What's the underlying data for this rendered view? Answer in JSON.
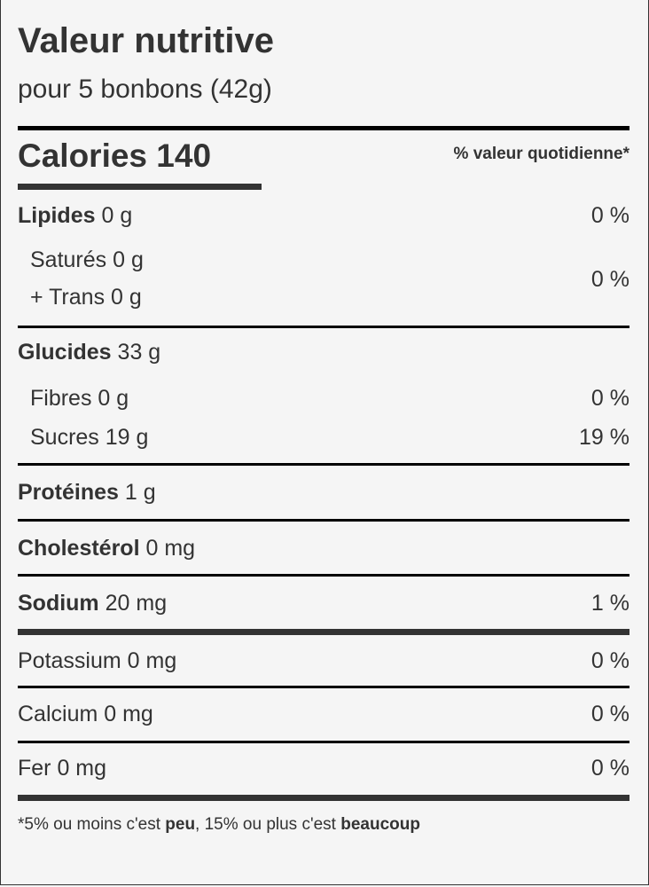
{
  "header": {
    "title": "Valeur nutritive",
    "serving": "pour 5 bonbons (42g)"
  },
  "calories": {
    "label": "Calories",
    "value": "140",
    "dv_header": "% valeur quotidienne*"
  },
  "rows": [
    {
      "name": "Lipides",
      "amount": "0 g",
      "dv": "0 %"
    },
    {
      "name": "Saturés",
      "amount": "0 g"
    },
    {
      "name": "+ Trans",
      "amount": "0 g",
      "dv": "0 %"
    },
    {
      "name": "Glucides",
      "amount": "33 g"
    },
    {
      "name": "Fibres",
      "amount": "0 g",
      "dv": "0 %"
    },
    {
      "name": "Sucres",
      "amount": "19 g",
      "dv": "19 %"
    },
    {
      "name": "Protéines",
      "amount": "1 g"
    },
    {
      "name": "Cholestérol",
      "amount": "0 mg"
    },
    {
      "name": "Sodium",
      "amount": "20 mg",
      "dv": "1 %"
    },
    {
      "name": "Potassium",
      "amount": "0 mg",
      "dv": "0 %"
    },
    {
      "name": "Calcium",
      "amount": "0 mg",
      "dv": "0 %"
    },
    {
      "name": "Fer",
      "amount": "0 mg",
      "dv": "0 %"
    }
  ],
  "footnote": {
    "part1": "*5% ou moins c'est ",
    "bold1": "peu",
    "part2": ", 15% ou plus c'est ",
    "bold2": "beaucoup"
  }
}
